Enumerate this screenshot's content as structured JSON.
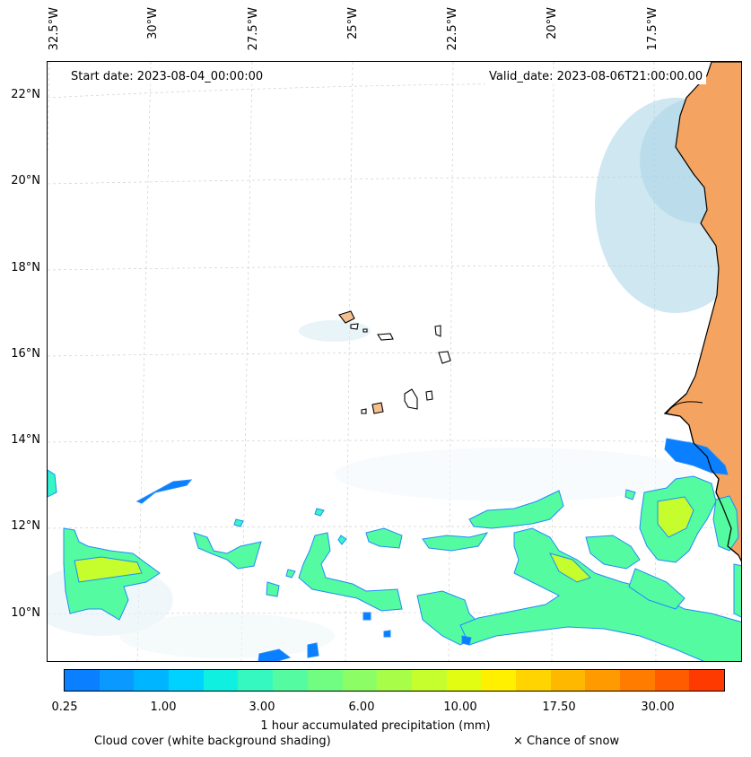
{
  "header": {
    "start_date": "Start date: 2023-08-04_00:00:00",
    "valid_date": "Valid_date: 2023-08-06T21:00:00.00"
  },
  "axes": {
    "longitude_labels": [
      "32.5°W",
      "30°W",
      "27.5°W",
      "25°W",
      "22.5°W",
      "20°W",
      "17.5°W"
    ],
    "latitude_labels": [
      "22°N",
      "20°N",
      "18°N",
      "16°N",
      "14°N",
      "12°N",
      "10°N"
    ]
  },
  "colorbar": {
    "label": "1 hour accumulated precipitation (mm)",
    "tick_labels": [
      "0.25",
      "1.00",
      "3.00",
      "6.00",
      "10.00",
      "17.50",
      "30.00"
    ],
    "colors": [
      "#0a7fff",
      "#0a99ff",
      "#00b5ff",
      "#00d2ff",
      "#10f0e0",
      "#35f7c0",
      "#55fba0",
      "#70fd82",
      "#8dfd65",
      "#a8fd48",
      "#c6fd2c",
      "#e2fd12",
      "#fff000",
      "#ffd400",
      "#ffb800",
      "#ff9a00",
      "#ff7c00",
      "#ff5c00",
      "#ff3a00"
    ]
  },
  "legend": {
    "cloud_cover": "Cloud cover (white background shading)",
    "snow": "× Chance of snow"
  },
  "colors": {
    "land": "#f4a460",
    "cloud": "#a8d4e6",
    "precip_light": "#0a7fff",
    "precip_mid": "#55fba0",
    "precip_high": "#c6fd2c"
  }
}
